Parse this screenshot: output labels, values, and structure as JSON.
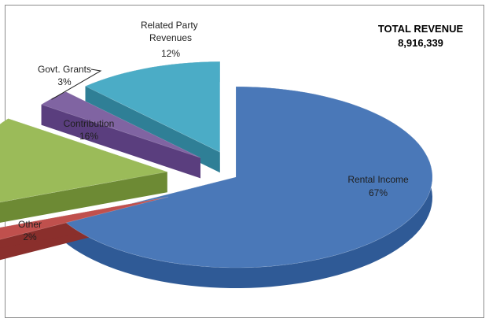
{
  "chart_data": {
    "type": "pie",
    "variant": "3d-exploded",
    "title": "TOTAL REVENUE",
    "subtitle": "8,916,339",
    "categories": [
      "Rental Income",
      "Other",
      "Contribution",
      "Govt. Grants",
      "Related Party Revenues"
    ],
    "values": [
      67,
      2,
      16,
      3,
      12
    ],
    "value_labels": [
      "67%",
      "2%",
      "16%",
      "3%",
      "12%"
    ],
    "colors": [
      "#4a78b8",
      "#c0504d",
      "#9bbb59",
      "#8064a2",
      "#4bacc6"
    ],
    "side_colors": [
      "#2f5a96",
      "#8a2f2c",
      "#6d8a34",
      "#5a3e7e",
      "#2f7f96"
    ],
    "legend": "none"
  }
}
